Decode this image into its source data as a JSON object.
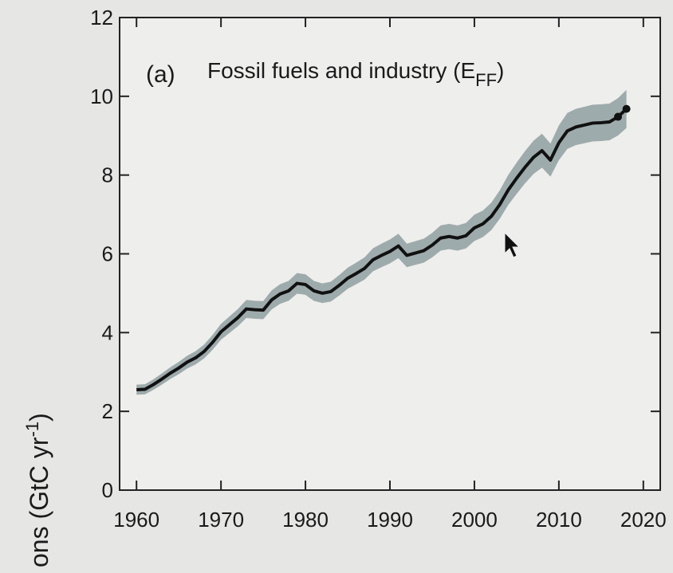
{
  "chart_data": {
    "type": "line",
    "panel_label": "(a)",
    "title": "Fossil fuels and industry (E",
    "title_sub": "FF",
    "title_end": ")",
    "ylabel": "ons (GtC yr",
    "ylabel_sup": "-1",
    "ylabel_end": ")",
    "x": [
      1960,
      1961,
      1962,
      1963,
      1964,
      1965,
      1966,
      1967,
      1968,
      1969,
      1970,
      1971,
      1972,
      1973,
      1974,
      1975,
      1976,
      1977,
      1978,
      1979,
      1980,
      1981,
      1982,
      1983,
      1984,
      1985,
      1986,
      1987,
      1988,
      1989,
      1990,
      1991,
      1992,
      1993,
      1994,
      1995,
      1996,
      1997,
      1998,
      1999,
      2000,
      2001,
      2002,
      2003,
      2004,
      2005,
      2006,
      2007,
      2008,
      2009,
      2010,
      2011,
      2012,
      2013,
      2014,
      2015,
      2016,
      2017,
      2018
    ],
    "series": [
      {
        "color": "#111111",
        "band_color": "#8a9a9c",
        "values": [
          2.55,
          2.56,
          2.68,
          2.82,
          2.97,
          3.1,
          3.25,
          3.36,
          3.52,
          3.75,
          4.02,
          4.2,
          4.38,
          4.6,
          4.58,
          4.57,
          4.83,
          4.98,
          5.06,
          5.25,
          5.22,
          5.06,
          5.0,
          5.04,
          5.2,
          5.38,
          5.5,
          5.63,
          5.85,
          5.96,
          6.06,
          6.2,
          5.96,
          6.02,
          6.08,
          6.22,
          6.4,
          6.44,
          6.4,
          6.46,
          6.66,
          6.76,
          6.95,
          7.25,
          7.62,
          7.92,
          8.2,
          8.45,
          8.62,
          8.38,
          8.82,
          9.12,
          9.22,
          9.27,
          9.32,
          9.33,
          9.35,
          9.48,
          9.68
        ]
      }
    ],
    "uncertainty_pct": 5,
    "end_markers": 2,
    "xlim": [
      1958,
      2022
    ],
    "ylim": [
      0,
      12
    ],
    "xticks": [
      1960,
      1970,
      1980,
      1990,
      2000,
      2010,
      2020
    ],
    "yticks": [
      0,
      2,
      4,
      6,
      8,
      10,
      12
    ],
    "grid": false
  }
}
